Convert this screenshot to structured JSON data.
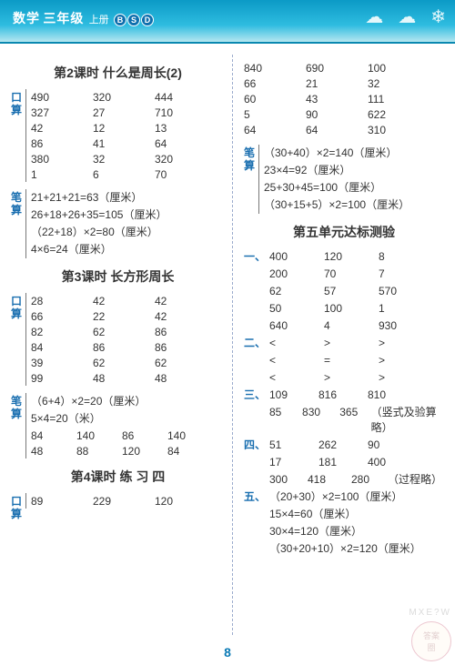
{
  "header": {
    "subject": "数学",
    "grade": "三年级",
    "term": "上册",
    "badges": [
      "B",
      "S",
      "D"
    ]
  },
  "weather_icons": [
    "☁",
    "☁",
    "❄"
  ],
  "left": {
    "sec1": {
      "title": "第2课时  什么是周长(2)",
      "kousuan_tag": "口算",
      "kousuan": [
        [
          "490",
          "320",
          "444"
        ],
        [
          "327",
          "27",
          "710"
        ],
        [
          "42",
          "12",
          "13"
        ],
        [
          "86",
          "41",
          "64"
        ],
        [
          "380",
          "32",
          "320"
        ],
        [
          "1",
          "6",
          "70"
        ]
      ],
      "bisuan_tag": "笔算",
      "bisuan": [
        "21+21+21=63（厘米）",
        "26+18+26+35=105（厘米）",
        "（22+18）×2=80（厘米）",
        "4×6=24（厘米）"
      ]
    },
    "sec2": {
      "title": "第3课时  长方形周长",
      "kousuan_tag": "口算",
      "kousuan": [
        [
          "28",
          "42",
          "42"
        ],
        [
          "66",
          "22",
          "42"
        ],
        [
          "82",
          "62",
          "86"
        ],
        [
          "84",
          "86",
          "86"
        ],
        [
          "39",
          "62",
          "62"
        ],
        [
          "99",
          "48",
          "48"
        ]
      ],
      "bisuan_tag": "笔算",
      "bisuan_top": [
        "（6+4）×2=20（厘米）",
        "5×4=20（米）"
      ],
      "bisuan_grid": [
        [
          "84",
          "140",
          "86",
          "140"
        ],
        [
          "48",
          "88",
          "120",
          "84"
        ]
      ]
    },
    "sec3": {
      "title": "第4课时  练 习  四",
      "kousuan_tag": "口算",
      "kousuan": [
        [
          "89",
          "229",
          "120"
        ]
      ]
    }
  },
  "right": {
    "kousuan": [
      [
        "840",
        "690",
        "100"
      ],
      [
        "66",
        "21",
        "32"
      ],
      [
        "60",
        "43",
        "111"
      ],
      [
        "5",
        "90",
        "622"
      ],
      [
        "64",
        "64",
        "310"
      ]
    ],
    "bisuan_tag": "笔算",
    "bisuan": [
      "（30+40）×2=140（厘米）",
      "23×4=92（厘米）",
      "25+30+45=100（厘米）",
      "（30+15+5）×2=100（厘米）"
    ],
    "unit_title": "第五单元达标测验",
    "items": [
      {
        "label": "一、",
        "rows": [
          {
            "cls": "g3",
            "cells": [
              "400",
              "120",
              "8"
            ]
          },
          {
            "cls": "g3",
            "cells": [
              "200",
              "70",
              "7"
            ]
          },
          {
            "cls": "g3",
            "cells": [
              "62",
              "57",
              "570"
            ]
          },
          {
            "cls": "g3",
            "cells": [
              "50",
              "100",
              "1"
            ]
          },
          {
            "cls": "g3",
            "cells": [
              "640",
              "4",
              "930"
            ]
          }
        ]
      },
      {
        "label": "二、",
        "rows": [
          {
            "cls": "g3",
            "cells": [
              "<",
              ">",
              ">"
            ]
          },
          {
            "cls": "g3",
            "cells": [
              "<",
              "=",
              ">"
            ]
          },
          {
            "cls": "g3",
            "cells": [
              "<",
              ">",
              ">"
            ]
          }
        ]
      },
      {
        "label": "三、",
        "rows": [
          {
            "cls": "g3b",
            "cells": [
              "109",
              "816",
              "810"
            ]
          },
          {
            "cls": "g4",
            "cells": [
              "85",
              "830",
              "365",
              "（竖式及验算略）"
            ]
          }
        ]
      },
      {
        "label": "四、",
        "rows": [
          {
            "cls": "g3b",
            "cells": [
              "51",
              "262",
              "90"
            ]
          },
          {
            "cls": "g3b",
            "cells": [
              "17",
              "181",
              "400"
            ]
          },
          {
            "cls": "g4",
            "cells": [
              "300",
              "418",
              "280",
              "（过程略）"
            ]
          }
        ]
      },
      {
        "label": "五、",
        "rows": [
          {
            "cls": "",
            "cells": [
              "（20+30）×2=100（厘米）"
            ]
          },
          {
            "cls": "",
            "cells": [
              "15×4=60（厘米）"
            ]
          },
          {
            "cls": "",
            "cells": [
              "30×4=120（厘米）"
            ]
          },
          {
            "cls": "",
            "cells": [
              "（30+20+10）×2=120（厘米）"
            ]
          }
        ]
      }
    ]
  },
  "page_number": "8",
  "watermark": {
    "top": "答案",
    "bottom": "圈",
    "side": "MXE?W"
  }
}
